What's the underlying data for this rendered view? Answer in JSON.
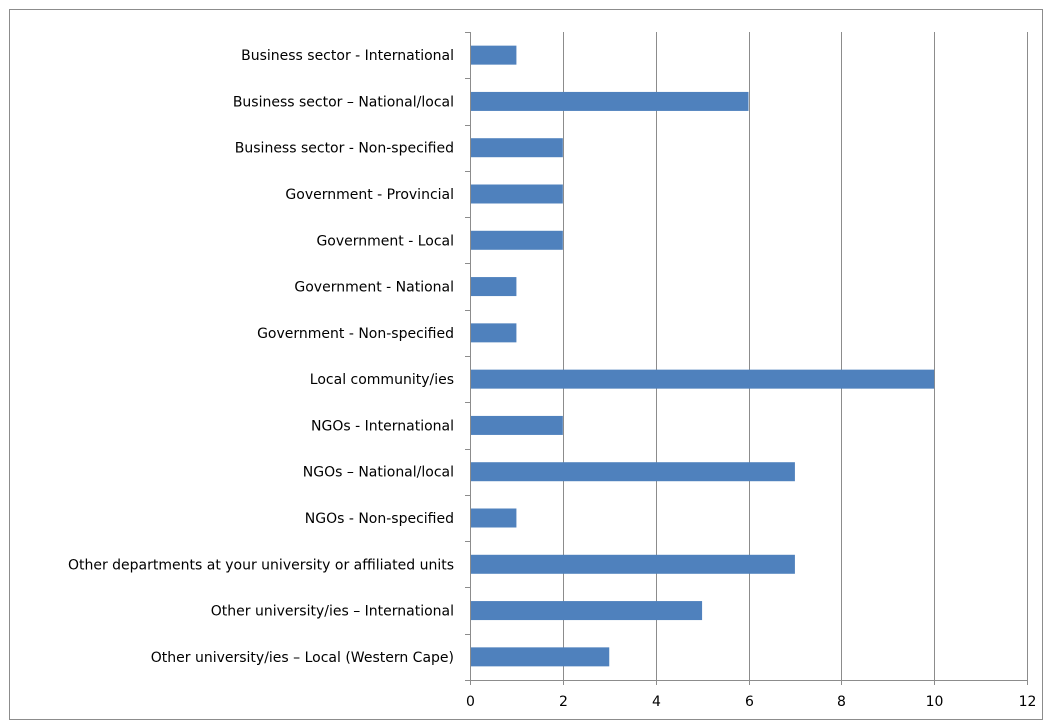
{
  "chart_data": {
    "type": "bar",
    "orientation": "horizontal",
    "title": "",
    "xlabel": "",
    "ylabel": "",
    "categories": [
      "Business sector - International",
      "Business sector – National/local",
      "Business sector - Non-specified",
      "Government  - Provincial",
      "Government - Local",
      "Government - National",
      "Government - Non-specified",
      "Local community/ies",
      "NGOs - International",
      "NGOs – National/local",
      "NGOs - Non-specified",
      "Other departments at your university or affiliated units",
      "Other university/ies – International",
      "Other university/ies – Local (Western Cape)"
    ],
    "values": [
      1,
      6,
      2,
      2,
      2,
      1,
      1,
      10,
      2,
      7,
      1,
      7,
      5,
      3
    ],
    "xlim": [
      0,
      12
    ],
    "xticks": [
      "0",
      "2",
      "4",
      "6",
      "8",
      "10",
      "12"
    ],
    "grid": true,
    "legend": "none",
    "bar_color": "#4f81bd",
    "grid_color": "#8c8c8c"
  }
}
